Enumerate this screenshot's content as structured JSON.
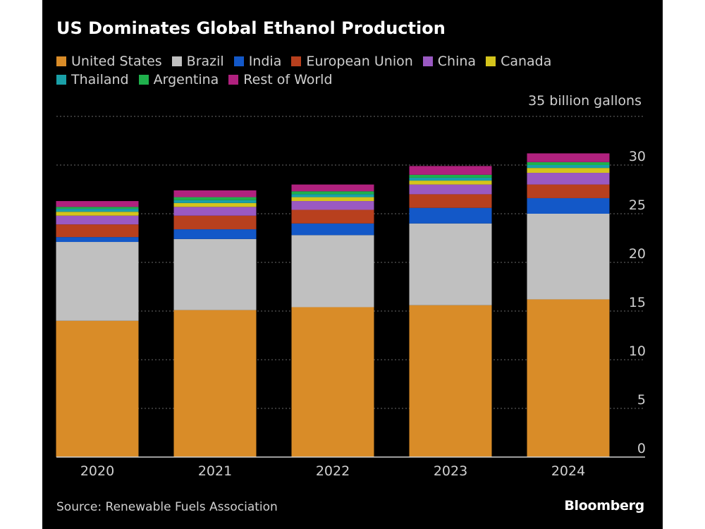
{
  "source": "Source: Renewable Fuels Association",
  "logo": "Bloomberg",
  "unit_label": "35 billion gallons",
  "chart_data": {
    "type": "bar",
    "stacked": true,
    "title": "US Dominates Global Ethanol Production",
    "xlabel": "",
    "ylabel": "",
    "ylim": [
      0,
      35
    ],
    "yticks": [
      0,
      5,
      10,
      15,
      20,
      25,
      30
    ],
    "grid": true,
    "legend_position": "top",
    "categories": [
      "2020",
      "2021",
      "2022",
      "2023",
      "2024"
    ],
    "series": [
      {
        "name": "United States",
        "color": "#d98c28",
        "values": [
          14.0,
          15.1,
          15.4,
          15.6,
          16.2
        ]
      },
      {
        "name": "Brazil",
        "color": "#c0c0c0",
        "values": [
          8.1,
          7.3,
          7.4,
          8.4,
          8.8
        ]
      },
      {
        "name": "India",
        "color": "#1358c8",
        "values": [
          0.5,
          1.0,
          1.2,
          1.6,
          1.6
        ]
      },
      {
        "name": "European Union",
        "color": "#b8401e",
        "values": [
          1.3,
          1.4,
          1.4,
          1.4,
          1.4
        ]
      },
      {
        "name": "China",
        "color": "#9a59c2",
        "values": [
          0.9,
          0.9,
          0.9,
          1.0,
          1.2
        ]
      },
      {
        "name": "Canada",
        "color": "#d4c41c",
        "values": [
          0.4,
          0.4,
          0.4,
          0.4,
          0.5
        ]
      },
      {
        "name": "Thailand",
        "color": "#1aa0a8",
        "values": [
          0.3,
          0.3,
          0.3,
          0.3,
          0.3
        ]
      },
      {
        "name": "Argentina",
        "color": "#1fb04c",
        "values": [
          0.2,
          0.3,
          0.3,
          0.3,
          0.3
        ]
      },
      {
        "name": "Rest of World",
        "color": "#b0217e",
        "values": [
          0.6,
          0.7,
          0.7,
          0.9,
          0.9
        ]
      }
    ]
  }
}
